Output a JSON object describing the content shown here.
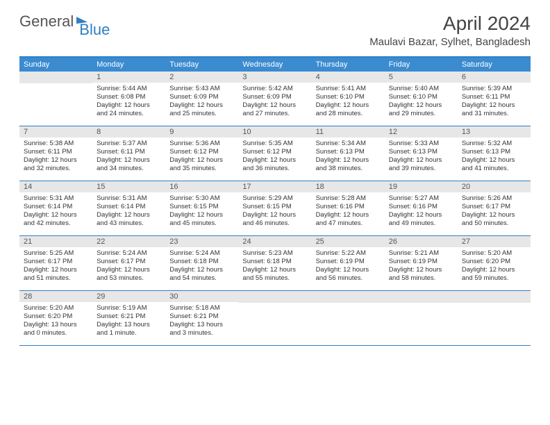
{
  "brand": {
    "part1": "General",
    "part2": "Blue"
  },
  "title": "April 2024",
  "location": "Maulavi Bazar, Sylhet, Bangladesh",
  "colors": {
    "accent": "#2f7fc3",
    "header_bg": "#3b8bd0",
    "daynum_bg": "#e7e7e7",
    "text": "#333333",
    "title_text": "#444444"
  },
  "weekdays": [
    "Sunday",
    "Monday",
    "Tuesday",
    "Wednesday",
    "Thursday",
    "Friday",
    "Saturday"
  ],
  "first_weekday_index": 1,
  "days": [
    {
      "n": 1,
      "sunrise": "5:44 AM",
      "sunset": "6:08 PM",
      "daylight": "12 hours and 24 minutes."
    },
    {
      "n": 2,
      "sunrise": "5:43 AM",
      "sunset": "6:09 PM",
      "daylight": "12 hours and 25 minutes."
    },
    {
      "n": 3,
      "sunrise": "5:42 AM",
      "sunset": "6:09 PM",
      "daylight": "12 hours and 27 minutes."
    },
    {
      "n": 4,
      "sunrise": "5:41 AM",
      "sunset": "6:10 PM",
      "daylight": "12 hours and 28 minutes."
    },
    {
      "n": 5,
      "sunrise": "5:40 AM",
      "sunset": "6:10 PM",
      "daylight": "12 hours and 29 minutes."
    },
    {
      "n": 6,
      "sunrise": "5:39 AM",
      "sunset": "6:11 PM",
      "daylight": "12 hours and 31 minutes."
    },
    {
      "n": 7,
      "sunrise": "5:38 AM",
      "sunset": "6:11 PM",
      "daylight": "12 hours and 32 minutes."
    },
    {
      "n": 8,
      "sunrise": "5:37 AM",
      "sunset": "6:11 PM",
      "daylight": "12 hours and 34 minutes."
    },
    {
      "n": 9,
      "sunrise": "5:36 AM",
      "sunset": "6:12 PM",
      "daylight": "12 hours and 35 minutes."
    },
    {
      "n": 10,
      "sunrise": "5:35 AM",
      "sunset": "6:12 PM",
      "daylight": "12 hours and 36 minutes."
    },
    {
      "n": 11,
      "sunrise": "5:34 AM",
      "sunset": "6:13 PM",
      "daylight": "12 hours and 38 minutes."
    },
    {
      "n": 12,
      "sunrise": "5:33 AM",
      "sunset": "6:13 PM",
      "daylight": "12 hours and 39 minutes."
    },
    {
      "n": 13,
      "sunrise": "5:32 AM",
      "sunset": "6:13 PM",
      "daylight": "12 hours and 41 minutes."
    },
    {
      "n": 14,
      "sunrise": "5:31 AM",
      "sunset": "6:14 PM",
      "daylight": "12 hours and 42 minutes."
    },
    {
      "n": 15,
      "sunrise": "5:31 AM",
      "sunset": "6:14 PM",
      "daylight": "12 hours and 43 minutes."
    },
    {
      "n": 16,
      "sunrise": "5:30 AM",
      "sunset": "6:15 PM",
      "daylight": "12 hours and 45 minutes."
    },
    {
      "n": 17,
      "sunrise": "5:29 AM",
      "sunset": "6:15 PM",
      "daylight": "12 hours and 46 minutes."
    },
    {
      "n": 18,
      "sunrise": "5:28 AM",
      "sunset": "6:16 PM",
      "daylight": "12 hours and 47 minutes."
    },
    {
      "n": 19,
      "sunrise": "5:27 AM",
      "sunset": "6:16 PM",
      "daylight": "12 hours and 49 minutes."
    },
    {
      "n": 20,
      "sunrise": "5:26 AM",
      "sunset": "6:17 PM",
      "daylight": "12 hours and 50 minutes."
    },
    {
      "n": 21,
      "sunrise": "5:25 AM",
      "sunset": "6:17 PM",
      "daylight": "12 hours and 51 minutes."
    },
    {
      "n": 22,
      "sunrise": "5:24 AM",
      "sunset": "6:17 PM",
      "daylight": "12 hours and 53 minutes."
    },
    {
      "n": 23,
      "sunrise": "5:24 AM",
      "sunset": "6:18 PM",
      "daylight": "12 hours and 54 minutes."
    },
    {
      "n": 24,
      "sunrise": "5:23 AM",
      "sunset": "6:18 PM",
      "daylight": "12 hours and 55 minutes."
    },
    {
      "n": 25,
      "sunrise": "5:22 AM",
      "sunset": "6:19 PM",
      "daylight": "12 hours and 56 minutes."
    },
    {
      "n": 26,
      "sunrise": "5:21 AM",
      "sunset": "6:19 PM",
      "daylight": "12 hours and 58 minutes."
    },
    {
      "n": 27,
      "sunrise": "5:20 AM",
      "sunset": "6:20 PM",
      "daylight": "12 hours and 59 minutes."
    },
    {
      "n": 28,
      "sunrise": "5:20 AM",
      "sunset": "6:20 PM",
      "daylight": "13 hours and 0 minutes."
    },
    {
      "n": 29,
      "sunrise": "5:19 AM",
      "sunset": "6:21 PM",
      "daylight": "13 hours and 1 minute."
    },
    {
      "n": 30,
      "sunrise": "5:18 AM",
      "sunset": "6:21 PM",
      "daylight": "13 hours and 3 minutes."
    }
  ],
  "labels": {
    "sunrise": "Sunrise:",
    "sunset": "Sunset:",
    "daylight": "Daylight:"
  }
}
